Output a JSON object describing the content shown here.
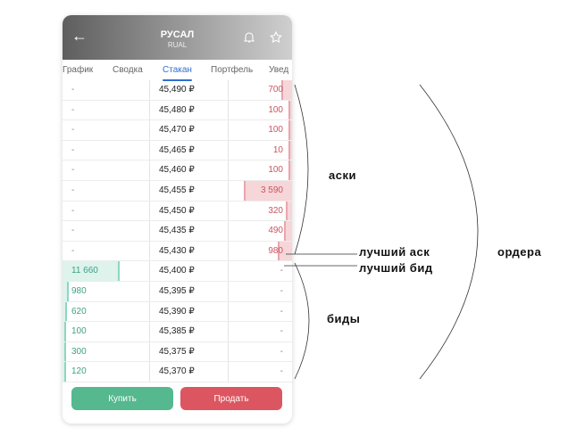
{
  "header": {
    "title": "РУСАЛ",
    "ticker": "RUAL"
  },
  "tabs": [
    {
      "label": "График"
    },
    {
      "label": "Сводка"
    },
    {
      "label": "Стакан",
      "active": true
    },
    {
      "label": "Портфель"
    },
    {
      "label": "Увед"
    }
  ],
  "colors": {
    "ask": "#c95560",
    "bid": "#3f9f86",
    "buy": "#55b88f",
    "sell": "#dc5661",
    "tab_active": "#2f6fd1"
  },
  "orderbook": [
    {
      "bid": "-",
      "price": "45,490 ₽",
      "ask": "700",
      "askv": 700
    },
    {
      "bid": "-",
      "price": "45,480 ₽",
      "ask": "100",
      "askv": 100
    },
    {
      "bid": "-",
      "price": "45,470 ₽",
      "ask": "100",
      "askv": 100
    },
    {
      "bid": "-",
      "price": "45,465 ₽",
      "ask": "10",
      "askv": 10
    },
    {
      "bid": "-",
      "price": "45,460 ₽",
      "ask": "100",
      "askv": 100
    },
    {
      "bid": "-",
      "price": "45,455 ₽",
      "ask": "3 590",
      "askv": 3590
    },
    {
      "bid": "-",
      "price": "45,450 ₽",
      "ask": "320",
      "askv": 320
    },
    {
      "bid": "-",
      "price": "45,435 ₽",
      "ask": "490",
      "askv": 490
    },
    {
      "bid": "-",
      "price": "45,430 ₽",
      "ask": "980",
      "askv": 980
    },
    {
      "bid": "11 660",
      "bidv": 11660,
      "price": "45,400 ₽",
      "ask": "-"
    },
    {
      "bid": "980",
      "bidv": 980,
      "price": "45,395 ₽",
      "ask": "-"
    },
    {
      "bid": "620",
      "bidv": 620,
      "price": "45,390 ₽",
      "ask": "-"
    },
    {
      "bid": "100",
      "bidv": 100,
      "price": "45,385 ₽",
      "ask": "-"
    },
    {
      "bid": "300",
      "bidv": 300,
      "price": "45,375 ₽",
      "ask": "-"
    },
    {
      "bid": "120",
      "bidv": 120,
      "price": "45,370 ₽",
      "ask": "-"
    }
  ],
  "buttons": {
    "buy": "Купить",
    "sell": "Продать"
  },
  "annotations": {
    "asks": "аски",
    "best_ask": "лучший аск",
    "best_bid": "лучший бид",
    "bids": "биды",
    "orders": "ордера"
  }
}
